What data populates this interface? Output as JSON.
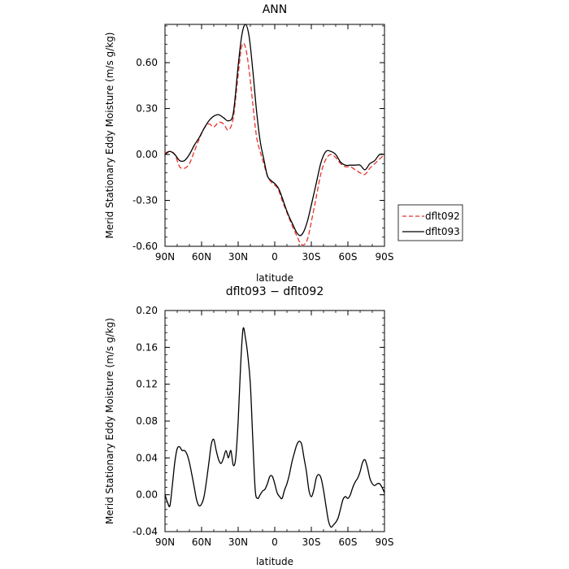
{
  "chart_data": [
    {
      "type": "line",
      "title": "ANN",
      "xlabel": "latitude",
      "ylabel": "Merid Stationary Eddy Moisture (m/s g/kg)",
      "x_tick_labels": [
        "90N",
        "60N",
        "30N",
        "0",
        "30S",
        "60S",
        "90S"
      ],
      "x_tick_values": [
        90,
        60,
        30,
        0,
        -30,
        -60,
        -90
      ],
      "xlim": [
        90,
        -90
      ],
      "y_tick_labels": [
        "-0.60",
        "-0.30",
        "0.00",
        "0.30",
        "0.60"
      ],
      "y_tick_values": [
        -0.6,
        -0.3,
        0.0,
        0.3,
        0.6
      ],
      "ylim": [
        -0.6,
        0.85
      ],
      "grid": false,
      "legend": "outside-right",
      "series": [
        {
          "name": "dflt092",
          "color": "#e8332b",
          "dash": "dashed",
          "x": [
            90,
            86,
            82,
            78,
            74,
            70,
            66,
            62,
            58,
            54,
            50,
            46,
            42,
            38,
            34,
            30,
            27,
            24,
            21,
            18,
            15,
            12,
            9,
            6,
            3,
            0,
            -3,
            -6,
            -9,
            -12,
            -15,
            -18,
            -21,
            -24,
            -27,
            -30,
            -34,
            -38,
            -42,
            -46,
            -50,
            -54,
            -58,
            -62,
            -66,
            -70,
            -74,
            -78,
            -82,
            -86,
            -90
          ],
          "y": [
            0.01,
            0.02,
            0.0,
            -0.08,
            -0.09,
            -0.06,
            0.02,
            0.1,
            0.17,
            0.2,
            0.18,
            0.21,
            0.2,
            0.16,
            0.24,
            0.52,
            0.71,
            0.7,
            0.55,
            0.33,
            0.12,
            0.02,
            -0.06,
            -0.14,
            -0.18,
            -0.2,
            -0.23,
            -0.3,
            -0.36,
            -0.42,
            -0.48,
            -0.53,
            -0.58,
            -0.59,
            -0.55,
            -0.44,
            -0.28,
            -0.12,
            -0.03,
            0.0,
            -0.02,
            -0.06,
            -0.08,
            -0.08,
            -0.1,
            -0.12,
            -0.13,
            -0.09,
            -0.06,
            -0.03,
            0.0
          ]
        },
        {
          "name": "dflt093",
          "color": "#000000",
          "dash": "solid",
          "x": [
            90,
            86,
            82,
            78,
            74,
            70,
            66,
            62,
            58,
            54,
            50,
            46,
            42,
            38,
            34,
            30,
            27,
            24,
            21,
            18,
            15,
            12,
            9,
            6,
            3,
            0,
            -3,
            -6,
            -9,
            -12,
            -15,
            -18,
            -21,
            -24,
            -27,
            -30,
            -34,
            -38,
            -42,
            -46,
            -50,
            -54,
            -58,
            -62,
            -66,
            -70,
            -74,
            -78,
            -82,
            -86,
            -90
          ],
          "y": [
            0.0,
            0.02,
            0.0,
            -0.04,
            -0.04,
            0.0,
            0.06,
            0.11,
            0.17,
            0.22,
            0.25,
            0.26,
            0.24,
            0.22,
            0.27,
            0.58,
            0.78,
            0.85,
            0.77,
            0.55,
            0.29,
            0.09,
            -0.03,
            -0.14,
            -0.17,
            -0.19,
            -0.22,
            -0.28,
            -0.35,
            -0.41,
            -0.46,
            -0.51,
            -0.53,
            -0.5,
            -0.43,
            -0.33,
            -0.19,
            -0.05,
            0.02,
            0.02,
            0.0,
            -0.05,
            -0.07,
            -0.07,
            -0.07,
            -0.07,
            -0.1,
            -0.06,
            -0.04,
            0.0,
            0.0
          ]
        }
      ]
    },
    {
      "type": "line",
      "title": "dflt093 − dflt092",
      "xlabel": "latitude",
      "ylabel": "Merid Stationary Eddy Moisture (m/s g/kg)",
      "x_tick_labels": [
        "90N",
        "60N",
        "30N",
        "0",
        "30S",
        "60S",
        "90S"
      ],
      "x_tick_values": [
        90,
        60,
        30,
        0,
        -30,
        -60,
        -90
      ],
      "xlim": [
        90,
        -90
      ],
      "y_tick_labels": [
        "-0.04",
        "0.00",
        "0.04",
        "0.08",
        "0.12",
        "0.16",
        "0.20"
      ],
      "y_tick_values": [
        -0.04,
        0.0,
        0.04,
        0.08,
        0.12,
        0.16,
        0.2
      ],
      "ylim": [
        -0.04,
        0.2
      ],
      "grid": false,
      "series": [
        {
          "color": "#000000",
          "dash": "solid",
          "x": [
            90,
            88,
            86,
            84,
            82,
            80,
            78,
            76,
            74,
            72,
            70,
            68,
            66,
            64,
            62,
            60,
            58,
            56,
            54,
            52,
            50,
            48,
            46,
            44,
            42,
            40,
            38,
            36,
            34,
            32,
            30,
            28,
            26,
            24,
            22,
            20,
            18,
            16,
            14,
            12,
            10,
            8,
            6,
            4,
            2,
            0,
            -2,
            -4,
            -6,
            -8,
            -10,
            -12,
            -14,
            -16,
            -18,
            -20,
            -22,
            -24,
            -26,
            -28,
            -30,
            -32,
            -34,
            -36,
            -38,
            -40,
            -42,
            -44,
            -46,
            -48,
            -50,
            -52,
            -54,
            -56,
            -58,
            -60,
            -62,
            -64,
            -66,
            -68,
            -70,
            -72,
            -74,
            -76,
            -78,
            -80,
            -82,
            -84,
            -86,
            -88,
            -90
          ],
          "y": [
            0.0,
            -0.008,
            -0.012,
            0.01,
            0.035,
            0.05,
            0.052,
            0.048,
            0.048,
            0.044,
            0.035,
            0.022,
            0.008,
            -0.006,
            -0.012,
            -0.01,
            -0.002,
            0.015,
            0.035,
            0.055,
            0.06,
            0.048,
            0.038,
            0.034,
            0.04,
            0.048,
            0.04,
            0.048,
            0.032,
            0.04,
            0.08,
            0.14,
            0.18,
            0.17,
            0.15,
            0.12,
            0.06,
            0.005,
            -0.004,
            0.0,
            0.004,
            0.006,
            0.012,
            0.02,
            0.02,
            0.012,
            0.002,
            -0.002,
            -0.004,
            0.005,
            0.012,
            0.022,
            0.035,
            0.045,
            0.054,
            0.058,
            0.055,
            0.04,
            0.025,
            0.005,
            -0.002,
            0.005,
            0.018,
            0.022,
            0.018,
            0.005,
            -0.012,
            -0.028,
            -0.035,
            -0.033,
            -0.03,
            -0.025,
            -0.015,
            -0.005,
            -0.002,
            -0.004,
            0.0,
            0.008,
            0.014,
            0.018,
            0.025,
            0.035,
            0.038,
            0.03,
            0.018,
            0.012,
            0.01,
            0.012,
            0.012,
            0.008,
            0.002
          ]
        }
      ]
    }
  ]
}
